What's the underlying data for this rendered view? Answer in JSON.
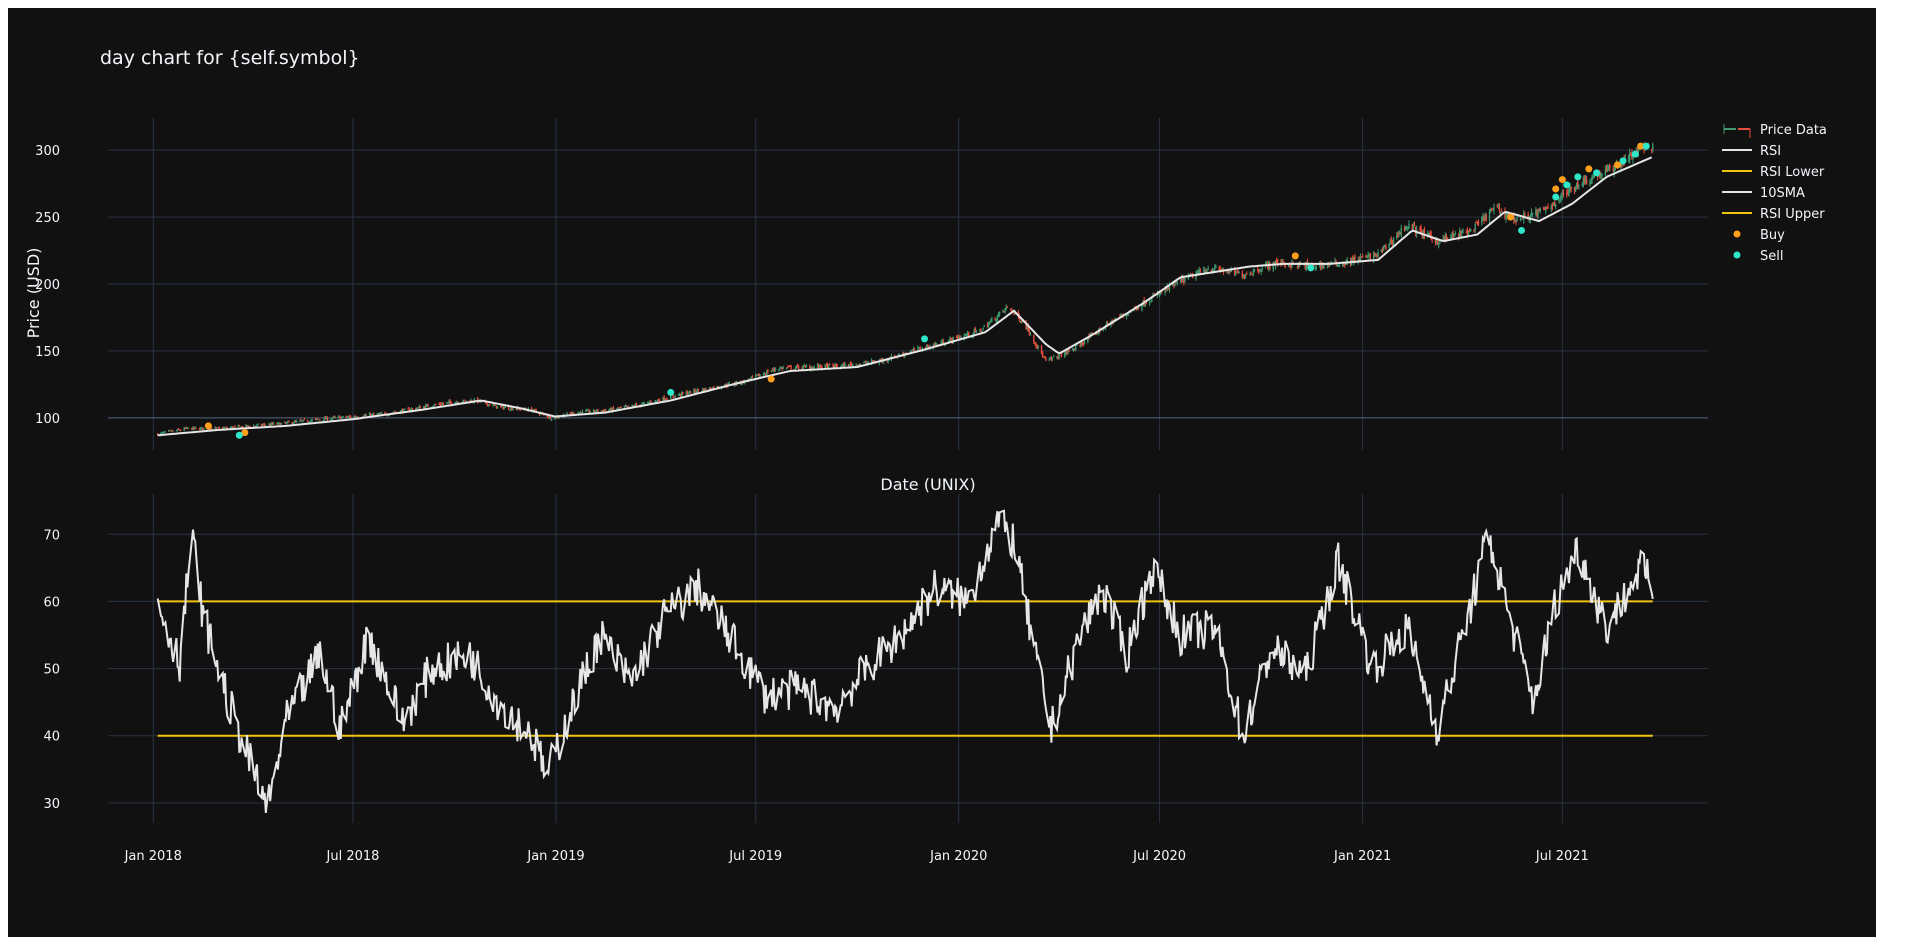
{
  "chart_data": {
    "title": "day chart for {self.symbol}",
    "type": "candlestick-with-indicators",
    "x_axis": {
      "label": "Date (UNIX)",
      "tick_labels": [
        "Jan 2018",
        "Jul 2018",
        "Jan 2019",
        "Jul 2019",
        "Jan 2020",
        "Jul 2020",
        "Jan 2021",
        "Jul 2021"
      ],
      "tick_values": [
        "2018-01-01",
        "2018-07-01",
        "2019-01-01",
        "2019-07-01",
        "2020-01-01",
        "2020-07-01",
        "2021-01-01",
        "2021-07-01"
      ],
      "range": [
        "2017-11-21",
        "2021-11-10"
      ]
    },
    "price_panel": {
      "ylabel": "Price (USD)",
      "ylim": [
        76,
        324
      ],
      "yticks": [
        100,
        150,
        200,
        250,
        300
      ],
      "close_anchors": [
        [
          "2018-01-05",
          88
        ],
        [
          "2018-02-01",
          92
        ],
        [
          "2018-03-01",
          92
        ],
        [
          "2018-04-01",
          94
        ],
        [
          "2018-05-01",
          96
        ],
        [
          "2018-06-01",
          99
        ],
        [
          "2018-07-01",
          101
        ],
        [
          "2018-08-01",
          103
        ],
        [
          "2018-09-01",
          108
        ],
        [
          "2018-10-01",
          112
        ],
        [
          "2018-10-20",
          113
        ],
        [
          "2018-11-10",
          108
        ],
        [
          "2018-12-10",
          106
        ],
        [
          "2018-12-28",
          100
        ],
        [
          "2019-01-20",
          104
        ],
        [
          "2019-02-20",
          106
        ],
        [
          "2019-03-20",
          110
        ],
        [
          "2019-04-20",
          117
        ],
        [
          "2019-05-20",
          122
        ],
        [
          "2019-06-20",
          127
        ],
        [
          "2019-07-20",
          137
        ],
        [
          "2019-08-20",
          138
        ],
        [
          "2019-09-20",
          139
        ],
        [
          "2019-10-20",
          142
        ],
        [
          "2019-11-20",
          150
        ],
        [
          "2019-12-20",
          157
        ],
        [
          "2020-01-20",
          165
        ],
        [
          "2020-02-15",
          183
        ],
        [
          "2020-03-01",
          170
        ],
        [
          "2020-03-20",
          142
        ],
        [
          "2020-04-15",
          152
        ],
        [
          "2020-05-15",
          170
        ],
        [
          "2020-06-15",
          185
        ],
        [
          "2020-07-15",
          200
        ],
        [
          "2020-08-15",
          212
        ],
        [
          "2020-09-15",
          207
        ],
        [
          "2020-10-15",
          216
        ],
        [
          "2020-11-15",
          213
        ],
        [
          "2020-12-15",
          216
        ],
        [
          "2021-01-15",
          222
        ],
        [
          "2021-02-10",
          244
        ],
        [
          "2021-03-10",
          232
        ],
        [
          "2021-04-10",
          240
        ],
        [
          "2021-05-01",
          257
        ],
        [
          "2021-05-20",
          248
        ],
        [
          "2021-06-15",
          255
        ],
        [
          "2021-07-15",
          275
        ],
        [
          "2021-08-15",
          286
        ],
        [
          "2021-09-10",
          301
        ],
        [
          "2021-09-21",
          303
        ]
      ],
      "sma_anchors": [
        [
          "2018-01-05",
          87
        ],
        [
          "2018-03-01",
          91
        ],
        [
          "2018-05-01",
          94
        ],
        [
          "2018-07-01",
          99
        ],
        [
          "2018-09-01",
          106
        ],
        [
          "2018-10-25",
          113
        ],
        [
          "2018-12-01",
          107
        ],
        [
          "2018-12-31",
          101
        ],
        [
          "2019-02-15",
          104
        ],
        [
          "2019-04-15",
          113
        ],
        [
          "2019-06-15",
          126
        ],
        [
          "2019-08-01",
          135
        ],
        [
          "2019-10-01",
          138
        ],
        [
          "2019-12-01",
          151
        ],
        [
          "2020-01-25",
          164
        ],
        [
          "2020-02-20",
          180
        ],
        [
          "2020-03-20",
          155
        ],
        [
          "2020-04-01",
          148
        ],
        [
          "2020-05-01",
          162
        ],
        [
          "2020-06-15",
          185
        ],
        [
          "2020-07-20",
          205
        ],
        [
          "2020-08-20",
          209
        ],
        [
          "2020-09-20",
          213
        ],
        [
          "2020-10-20",
          215
        ],
        [
          "2020-12-01",
          215
        ],
        [
          "2021-01-15",
          218
        ],
        [
          "2021-02-15",
          240
        ],
        [
          "2021-03-15",
          232
        ],
        [
          "2021-04-15",
          237
        ],
        [
          "2021-05-10",
          254
        ],
        [
          "2021-06-10",
          247
        ],
        [
          "2021-07-10",
          260
        ],
        [
          "2021-08-10",
          280
        ],
        [
          "2021-09-21",
          295
        ]
      ],
      "buy_points": [
        [
          "2018-02-20",
          94
        ],
        [
          "2018-03-25",
          89
        ],
        [
          "2019-07-15",
          129
        ],
        [
          "2020-11-01",
          221
        ],
        [
          "2021-05-15",
          250
        ],
        [
          "2021-06-25",
          271
        ],
        [
          "2021-07-01",
          278
        ],
        [
          "2021-07-25",
          286
        ],
        [
          "2021-08-20",
          289
        ],
        [
          "2021-09-10",
          303
        ]
      ],
      "sell_points": [
        [
          "2018-03-20",
          87
        ],
        [
          "2019-04-15",
          119
        ],
        [
          "2019-12-01",
          159
        ],
        [
          "2020-11-15",
          212
        ],
        [
          "2021-05-25",
          240
        ],
        [
          "2021-06-25",
          265
        ],
        [
          "2021-07-05",
          274
        ],
        [
          "2021-07-15",
          280
        ],
        [
          "2021-08-01",
          283
        ],
        [
          "2021-08-25",
          292
        ],
        [
          "2021-09-05",
          297
        ],
        [
          "2021-09-15",
          303
        ]
      ]
    },
    "rsi_panel": {
      "ylim": [
        27,
        76
      ],
      "yticks": [
        30,
        40,
        50,
        60,
        70
      ],
      "lower_band": 40,
      "upper_band": 60,
      "band_range": [
        "2018-01-05",
        "2021-09-21"
      ],
      "rsi_anchors": [
        [
          "2018-01-05",
          60
        ],
        [
          "2018-01-25",
          51
        ],
        [
          "2018-02-05",
          70
        ],
        [
          "2018-02-15",
          58
        ],
        [
          "2018-03-10",
          45
        ],
        [
          "2018-04-01",
          35
        ],
        [
          "2018-04-15",
          29
        ],
        [
          "2018-05-01",
          42
        ],
        [
          "2018-06-01",
          52
        ],
        [
          "2018-06-20",
          41
        ],
        [
          "2018-07-15",
          55
        ],
        [
          "2018-08-15",
          42
        ],
        [
          "2018-09-10",
          50
        ],
        [
          "2018-10-15",
          52
        ],
        [
          "2018-11-10",
          45
        ],
        [
          "2018-12-10",
          40
        ],
        [
          "2018-12-24",
          34
        ],
        [
          "2019-01-10",
          42
        ],
        [
          "2019-02-10",
          55
        ],
        [
          "2019-03-10",
          48
        ],
        [
          "2019-04-10",
          58
        ],
        [
          "2019-05-10",
          62
        ],
        [
          "2019-06-10",
          54
        ],
        [
          "2019-07-10",
          46
        ],
        [
          "2019-08-10",
          47
        ],
        [
          "2019-09-10",
          44
        ],
        [
          "2019-10-10",
          50
        ],
        [
          "2019-11-10",
          55
        ],
        [
          "2019-12-10",
          62
        ],
        [
          "2020-01-10",
          60
        ],
        [
          "2020-02-05",
          72
        ],
        [
          "2020-02-20",
          69
        ],
        [
          "2020-03-10",
          52
        ],
        [
          "2020-03-25",
          41
        ],
        [
          "2020-04-20",
          55
        ],
        [
          "2020-05-10",
          62
        ],
        [
          "2020-06-01",
          52
        ],
        [
          "2020-06-25",
          65
        ],
        [
          "2020-07-20",
          55
        ],
        [
          "2020-08-20",
          56
        ],
        [
          "2020-09-15",
          40
        ],
        [
          "2020-10-10",
          53
        ],
        [
          "2020-11-10",
          49
        ],
        [
          "2020-12-10",
          66
        ],
        [
          "2021-01-10",
          50
        ],
        [
          "2021-02-10",
          56
        ],
        [
          "2021-03-10",
          41
        ],
        [
          "2021-04-10",
          60
        ],
        [
          "2021-04-25",
          70
        ],
        [
          "2021-05-15",
          57
        ],
        [
          "2021-06-05",
          45
        ],
        [
          "2021-06-25",
          60
        ],
        [
          "2021-07-15",
          68
        ],
        [
          "2021-08-10",
          56
        ],
        [
          "2021-09-10",
          65
        ],
        [
          "2021-09-21",
          62
        ]
      ]
    },
    "legend": {
      "placement": "right",
      "items": [
        {
          "label": "Price Data",
          "kind": "candle"
        },
        {
          "label": "RSI",
          "kind": "line",
          "color": "#e6e6e6"
        },
        {
          "label": "RSI Lower",
          "kind": "line",
          "color": "#f1c40f"
        },
        {
          "label": "10SMA",
          "kind": "line",
          "color": "#e6e6e6"
        },
        {
          "label": "RSI Upper",
          "kind": "line",
          "color": "#f1c40f"
        },
        {
          "label": "Buy",
          "kind": "marker",
          "color": "#ff9f1c"
        },
        {
          "label": "Sell",
          "kind": "marker",
          "color": "#2ee6c8"
        }
      ]
    },
    "colors": {
      "background": "#111111",
      "grid": "#283442",
      "zeroline": "#506784",
      "increasing": "#3d9970",
      "decreasing": "#e74c3c",
      "text": "#f2f5fa"
    },
    "grid": true
  }
}
